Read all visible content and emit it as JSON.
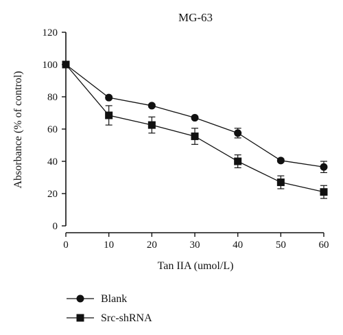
{
  "chart_data": {
    "type": "line",
    "title": "MG-63",
    "xlabel": "Tan IIA (umol/L)",
    "ylabel": "Absorbance (% of control)",
    "x": [
      0,
      10,
      20,
      30,
      40,
      50,
      60
    ],
    "xlim": [
      0,
      60
    ],
    "ylim": [
      0,
      120
    ],
    "xticks": [
      "0",
      "10",
      "20",
      "30",
      "40",
      "50",
      "60"
    ],
    "yticks": [
      "0",
      "20",
      "40",
      "60",
      "80",
      "100",
      "120"
    ],
    "grid": false,
    "legend_position": "bottom-left",
    "series": [
      {
        "name": "Blank",
        "marker": "circle",
        "values": [
          100,
          79.5,
          74.5,
          67,
          57.5,
          40.5,
          36.5
        ],
        "errors": [
          0,
          1,
          1,
          1,
          3,
          1,
          3.5
        ]
      },
      {
        "name": "Src-shRNA",
        "marker": "square",
        "values": [
          100,
          68.5,
          62.5,
          55.5,
          40,
          27,
          21
        ],
        "errors": [
          0,
          6,
          5,
          5,
          4,
          4,
          4
        ]
      }
    ]
  }
}
